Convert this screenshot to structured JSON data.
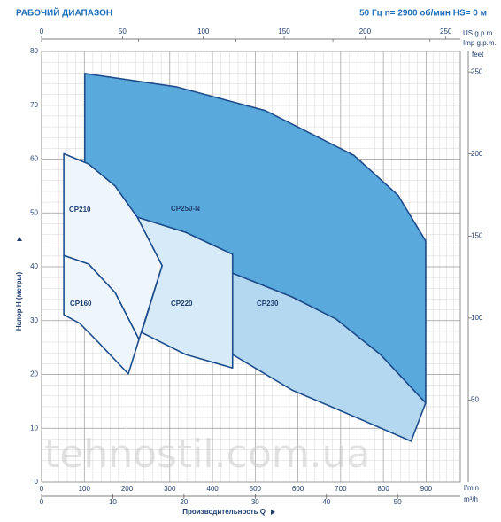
{
  "chart_data": {
    "type": "range",
    "title": "РАБОЧИЙ ДИАПАЗОН",
    "subtitle": "50 Гц   n= 2900 об/мин    HS= 0 м",
    "x_label": "Производительность Q",
    "y_label": "Напор H (метры)",
    "x_unit": "l/min",
    "xlim": [
      0,
      980
    ],
    "xticks": [
      0,
      100,
      200,
      300,
      400,
      500,
      600,
      700,
      800,
      900
    ],
    "ylim": [
      0,
      80
    ],
    "yticks": [
      0,
      10,
      20,
      30,
      40,
      50,
      60,
      70,
      80
    ],
    "y2_unit": "feet",
    "y2lim": [
      0,
      262.5
    ],
    "y2ticks": [
      50,
      100,
      150,
      200,
      250
    ],
    "x2_unit": "m³/h",
    "x2lim": [
      0,
      58.8
    ],
    "x2ticks": [
      0,
      10,
      20,
      30,
      40,
      50
    ],
    "x3_unit": "US g.p.m.",
    "x3lim": [
      0,
      258.9
    ],
    "x3ticks": [
      0,
      50,
      100,
      150,
      200,
      250
    ],
    "x4_unit": "Imp g.p.m.",
    "x4lim": [
      0,
      215.6
    ],
    "x4ticks": [
      0,
      50,
      100,
      150,
      200
    ],
    "grid": true,
    "regions": [
      {
        "name": "CP250-N",
        "color": "#5aa9dd",
        "x": [
          101,
          317,
          524,
          731,
          834,
          899,
          899,
          793,
          689,
          586,
          447,
          447,
          337,
          224,
          170,
          101
        ],
        "y": [
          75.9,
          73.4,
          69,
          60.7,
          53.3,
          44.8,
          14.7,
          23.7,
          30.3,
          34.4,
          38.8,
          42.3,
          46.4,
          49.2,
          53.6,
          59.4
        ]
      },
      {
        "name": "CP230",
        "color": "#b4d8f0",
        "x": [
          447,
          586,
          689,
          793,
          899,
          865,
          731,
          586,
          447
        ],
        "y": [
          38.8,
          34.4,
          30.3,
          23.7,
          14.7,
          7.6,
          12.2,
          17.1,
          23.7
        ]
      },
      {
        "name": "CP220",
        "color": "#d6eaf7",
        "x": [
          224,
          337,
          447,
          447,
          337,
          234,
          282
        ],
        "y": [
          49.2,
          46.4,
          42.3,
          21.2,
          23.7,
          27.8,
          40.2
        ]
      },
      {
        "name": "CP210",
        "color": "#eef5fb",
        "x": [
          52,
          110,
          172,
          224,
          282,
          228,
          172,
          110,
          52
        ],
        "y": [
          61,
          59.1,
          55,
          49.2,
          40.2,
          26.5,
          35.2,
          40.5,
          42.1
        ]
      },
      {
        "name": "CP160",
        "color": "#eef5fb",
        "x": [
          52,
          110,
          172,
          228,
          203,
          130,
          89,
          52
        ],
        "y": [
          42.1,
          40.5,
          35.2,
          26.5,
          20.1,
          26.2,
          29.5,
          31.1
        ]
      }
    ],
    "watermark": "tehnostil.com.ua"
  }
}
